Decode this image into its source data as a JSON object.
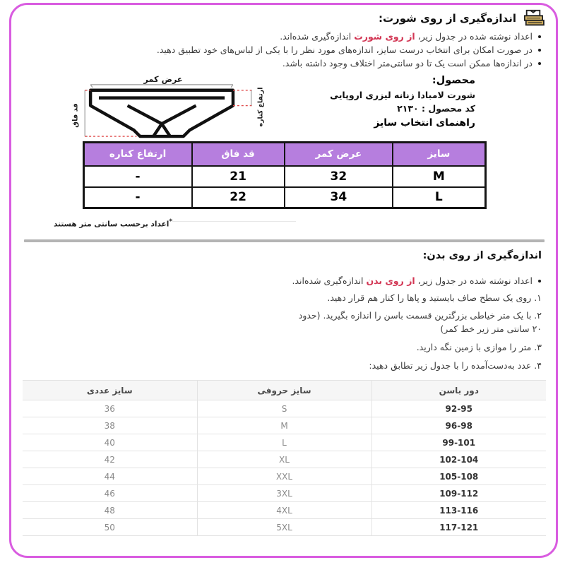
{
  "colors": {
    "frame_border": "#d95ce0",
    "table_header_purple": "#b67ede",
    "highlight_red": "#d23553",
    "divider_gray": "#b4b4b4"
  },
  "section_shorts": {
    "icon": "folded-clothes-icon",
    "title": "اندازه‌گیری از روی شورت:",
    "bullets": [
      {
        "pre": "اعداد نوشته شده در جدول زیر، ",
        "highlight": "از روی شورت",
        "post": " اندازه‌گیری شده‌اند."
      },
      {
        "pre": "در صورت امکان برای انتخاب درست سایز، اندازه‌های مورد نظر را با یکی از لباس‌های خود تطبیق دهید.",
        "highlight": "",
        "post": ""
      },
      {
        "pre": "در اندازه‌ها ممکن است یک تا دو سانتی‌متر اختلاف وجود داشته باشد.",
        "highlight": "",
        "post": ""
      }
    ],
    "diagram": {
      "label_top": "عرض کمر",
      "label_left": "قد فاق",
      "label_right": "ارتفاع کناره"
    },
    "product": {
      "label": "محصول:",
      "name": "شورت لامبادا زنانه لیزری اروپایی",
      "code": "کد محصول : ۲۱۳۰",
      "guide": "راهنمای انتخاب سایز"
    },
    "table": {
      "headers": [
        "سایز",
        "عرض کمر",
        "قد فاق",
        "ارتفاع کناره"
      ],
      "rows": [
        [
          "M",
          "32",
          "21",
          "-"
        ],
        [
          "L",
          "34",
          "22",
          "-"
        ]
      ]
    },
    "footnote_mark": "*",
    "footnote": "اعداد برحسب سانتی متر هستند"
  },
  "section_body": {
    "title": "اندازه‌گیری از روی بدن:",
    "bullet": {
      "pre": "اعداد نوشته شده در جدول زیر، ",
      "highlight": "از روی بدن",
      "post": " اندازه‌گیری شده‌اند."
    },
    "steps": [
      "۱. روی یک سطح صاف بایستید و پاها را کنار هم قرار دهید.",
      "۲. با یک متر خیاطی بزرگترین قسمت باسن را اندازه بگیرید. (حدود\n۲۰ سانتی متر زیر خط کمر)",
      "۳. متر را موازی با زمین نگه دارید.",
      "۴. عدد به‌دست‌آمده را با جدول زیر تطابق دهید:"
    ],
    "table": {
      "headers": [
        "دور باسن",
        "سایز حروفی",
        "سایز عددی"
      ],
      "rows": [
        [
          "92-95",
          "S",
          "36"
        ],
        [
          "96-98",
          "M",
          "38"
        ],
        [
          "99-101",
          "L",
          "40"
        ],
        [
          "102-104",
          "XL",
          "42"
        ],
        [
          "105-108",
          "XXL",
          "44"
        ],
        [
          "109-112",
          "3XL",
          "46"
        ],
        [
          "113-116",
          "4XL",
          "48"
        ],
        [
          "117-121",
          "5XL",
          "50"
        ]
      ]
    }
  }
}
